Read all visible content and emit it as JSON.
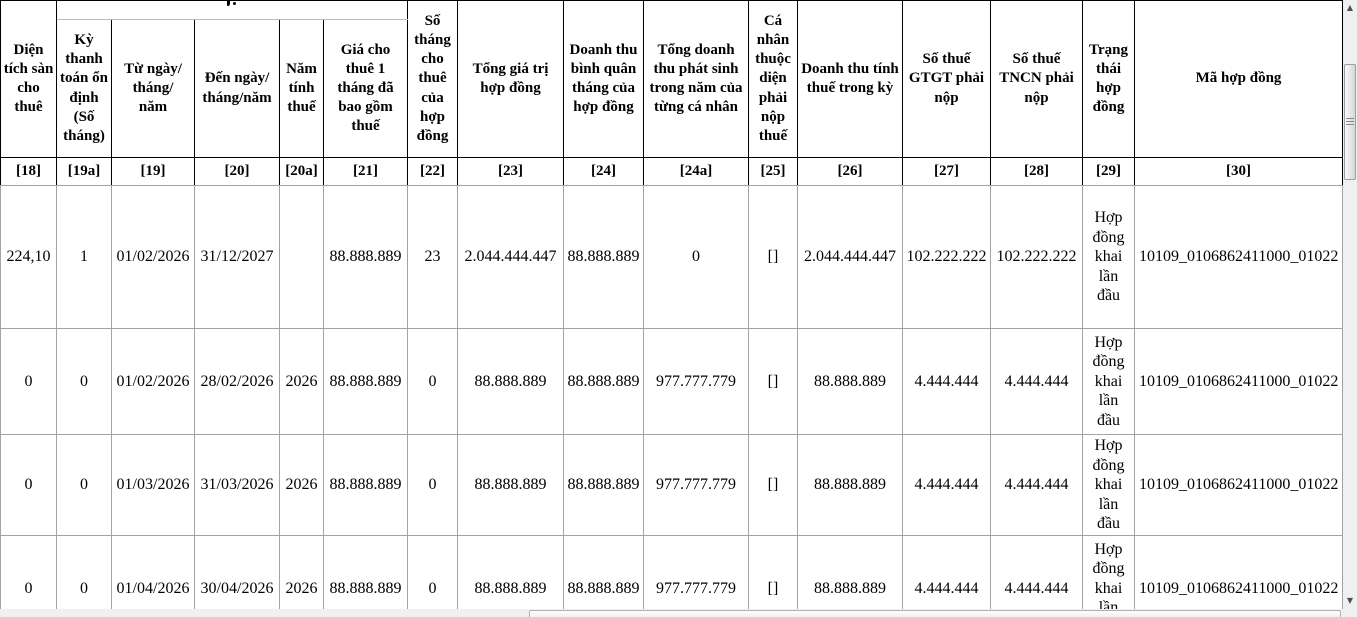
{
  "table": {
    "columns": [
      {
        "id": "18",
        "label": "Diện tích sàn cho thuê",
        "index": "[18]"
      },
      {
        "id": "19a",
        "label": "Kỳ thanh toán ổn định (Số tháng)",
        "index": "[19a]"
      },
      {
        "id": "19",
        "label": "Từ ngày/\ntháng/\nnăm",
        "index": "[19]"
      },
      {
        "id": "20",
        "label": "Đến ngày/\ntháng/năm",
        "index": "[20]"
      },
      {
        "id": "20a",
        "label": "Năm tính thuế",
        "index": "[20a]"
      },
      {
        "id": "21",
        "label": "Giá cho thuê 1 tháng đã bao gồm thuế",
        "index": "[21]"
      },
      {
        "id": "22",
        "label": "Số tháng cho thuê của hợp đồng",
        "index": "[22]"
      },
      {
        "id": "23",
        "label": "Tổng giá trị hợp đồng",
        "index": "[23]"
      },
      {
        "id": "24",
        "label": "Doanh thu bình quân tháng của hợp đồng",
        "index": "[24]"
      },
      {
        "id": "24a",
        "label": "Tổng doanh thu phát sinh trong năm của từng cá nhân",
        "index": "[24a]"
      },
      {
        "id": "25",
        "label": "Cá nhân thuộc diện phải nộp thuế",
        "index": "[25]"
      },
      {
        "id": "26",
        "label": "Doanh thu tính thuế trong kỳ",
        "index": "[26]"
      },
      {
        "id": "27",
        "label": "Số thuế GTGT phải nộp",
        "index": "[27]"
      },
      {
        "id": "28",
        "label": "Số thuế TNCN phải nộp",
        "index": "[28]"
      },
      {
        "id": "29",
        "label": "Trạng thái hợp đồng",
        "index": "[29]"
      },
      {
        "id": "30",
        "label": "Mã hợp đồng",
        "index": "[30]"
      }
    ],
    "rows": [
      [
        "224,10",
        "1",
        "01/02/2026",
        "31/12/2027",
        "",
        "88.888.889",
        "23",
        "2.044.444.447",
        "88.888.889",
        "0",
        "[]",
        "2.044.444.447",
        "102.222.222",
        "102.222.222",
        "Hợp đồng khai lần đầu",
        "10109_0106862411000_01022"
      ],
      [
        "0",
        "0",
        "01/02/2026",
        "28/02/2026",
        "2026",
        "88.888.889",
        "0",
        "88.888.889",
        "88.888.889",
        "977.777.779",
        "[]",
        "88.888.889",
        "4.444.444",
        "4.444.444",
        "Hợp đồng khai lần đầu",
        "10109_0106862411000_01022"
      ],
      [
        "0",
        "0",
        "01/03/2026",
        "31/03/2026",
        "2026",
        "88.888.889",
        "0",
        "88.888.889",
        "88.888.889",
        "977.777.779",
        "[]",
        "88.888.889",
        "4.444.444",
        "4.444.444",
        "Hợp đồng khai lần đầu",
        "10109_0106862411000_01022"
      ],
      [
        "0",
        "0",
        "01/04/2026",
        "30/04/2026",
        "2026",
        "88.888.889",
        "0",
        "88.888.889",
        "88.888.889",
        "977.777.779",
        "[]",
        "88.888.889",
        "4.444.444",
        "4.444.444",
        "Hợp đồng khai lần đầu",
        "10109_0106862411000_01022"
      ]
    ]
  },
  "icons": {
    "scroll_up": "▲",
    "scroll_down": "▼"
  },
  "colors": {
    "border_dark": "#000000",
    "border_light": "#a3a3a3",
    "scrollbar_track": "#f0f0f0"
  }
}
